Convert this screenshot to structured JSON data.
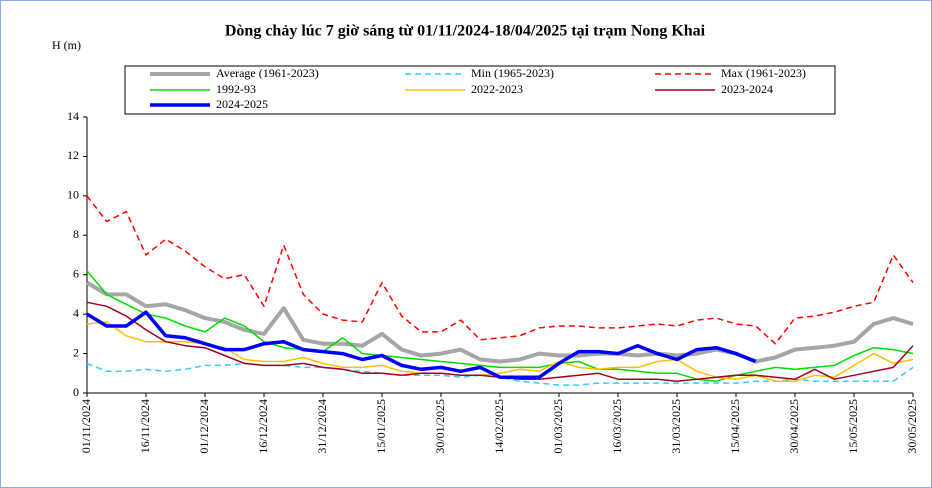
{
  "chart_data": {
    "type": "line",
    "title": "Dòng chảy lúc 7 giờ sáng từ 01/11/2024-18/04/2025 tại trạm Nong Khai",
    "y_label": "H (m)",
    "categories": [
      "01/11/2024",
      null,
      null,
      "16/11/2024",
      null,
      null,
      "01/12/2024",
      null,
      null,
      "16/12/2024",
      null,
      null,
      "31/12/2024",
      null,
      null,
      "15/01/2025",
      null,
      null,
      "30/01/2025",
      null,
      null,
      "14/02/2025",
      null,
      null,
      "01/03/2025",
      null,
      null,
      "16/03/2025",
      null,
      null,
      "31/03/2025",
      null,
      null,
      "15/04/2025",
      null,
      null,
      "30/04/2025",
      null,
      null,
      "15/05/2025",
      null,
      null,
      "30/05/2025"
    ],
    "ylim": [
      0,
      14
    ],
    "yticks": [
      0,
      2,
      4,
      6,
      8,
      10,
      12,
      14
    ],
    "series": [
      {
        "name": "Average (1961-2023)",
        "color": "#a6a6a6",
        "dash": false,
        "values": [
          5.6,
          5.0,
          5.0,
          4.4,
          4.5,
          4.2,
          3.8,
          3.6,
          3.2,
          3.0,
          4.3,
          2.7,
          2.5,
          2.5,
          2.4,
          3.0,
          2.2,
          1.9,
          2.0,
          2.2,
          1.7,
          1.6,
          1.7,
          2.0,
          1.9,
          1.9,
          2.0,
          2.0,
          1.9,
          2.0,
          1.9,
          2.0,
          2.2,
          2.0,
          1.6,
          1.8,
          2.2,
          2.3,
          2.4,
          2.6,
          3.5,
          3.8,
          3.5
        ]
      },
      {
        "name": "Min (1965-2023)",
        "color": "#33ccff",
        "dash": true,
        "values": [
          1.5,
          1.1,
          1.1,
          1.2,
          1.1,
          1.2,
          1.4,
          1.4,
          1.5,
          1.4,
          1.4,
          1.3,
          1.3,
          1.2,
          1.1,
          1.0,
          0.9,
          0.9,
          0.9,
          0.8,
          0.9,
          0.8,
          0.6,
          0.5,
          0.4,
          0.4,
          0.5,
          0.5,
          0.5,
          0.5,
          0.5,
          0.5,
          0.5,
          0.5,
          0.6,
          0.6,
          0.7,
          0.6,
          0.6,
          0.6,
          0.6,
          0.6,
          1.3
        ]
      },
      {
        "name": "Max (1961-2023)",
        "color": "#ff0000",
        "dash": true,
        "values": [
          10,
          8.7,
          9.2,
          7.0,
          7.8,
          7.2,
          6.4,
          5.8,
          6.0,
          4.4,
          7.5,
          5.0,
          4.0,
          3.7,
          3.6,
          5.6,
          3.9,
          3.1,
          3.1,
          3.7,
          2.7,
          2.8,
          2.9,
          3.3,
          3.4,
          3.4,
          3.3,
          3.3,
          3.4,
          3.5,
          3.4,
          3.7,
          3.8,
          3.5,
          3.4,
          2.5,
          3.8,
          3.9,
          4.1,
          4.4,
          4.6,
          7.0,
          5.6
        ]
      },
      {
        "name": "1992-93",
        "color": "#00dd00",
        "dash": false,
        "values": [
          6.2,
          5.0,
          4.5,
          4.0,
          3.8,
          3.4,
          3.1,
          3.8,
          3.4,
          2.6,
          2.3,
          2.2,
          2.1,
          2.8,
          2.0,
          1.9,
          1.8,
          1.7,
          1.6,
          1.5,
          1.4,
          1.3,
          1.3,
          1.3,
          1.5,
          1.6,
          1.2,
          1.2,
          1.1,
          1.0,
          1.0,
          0.7,
          0.6,
          0.9,
          1.1,
          1.3,
          1.2,
          1.3,
          1.4,
          1.9,
          2.3,
          2.2,
          2.0
        ]
      },
      {
        "name": "2022-2023",
        "color": "#ffc000",
        "dash": false,
        "values": [
          3.5,
          3.6,
          2.9,
          2.6,
          2.6,
          2.6,
          2.5,
          2.3,
          1.7,
          1.6,
          1.6,
          1.8,
          1.5,
          1.3,
          1.3,
          1.4,
          1.1,
          1.0,
          1.0,
          0.9,
          0.9,
          1.0,
          1.2,
          1.1,
          1.6,
          1.3,
          1.2,
          1.3,
          1.3,
          1.6,
          1.7,
          1.1,
          0.8,
          0.7,
          0.9,
          0.6,
          0.6,
          0.9,
          0.8,
          1.4,
          2.0,
          1.5,
          1.7
        ]
      },
      {
        "name": "2023-2024",
        "color": "#a50021",
        "dash": false,
        "values": [
          4.6,
          4.4,
          3.9,
          3.2,
          2.6,
          2.4,
          2.3,
          1.9,
          1.5,
          1.4,
          1.4,
          1.5,
          1.3,
          1.2,
          1.0,
          1.0,
          0.9,
          1.0,
          1.0,
          0.9,
          0.9,
          0.8,
          0.7,
          0.7,
          0.8,
          0.9,
          1.0,
          0.7,
          0.7,
          0.7,
          0.6,
          0.7,
          0.8,
          0.9,
          0.9,
          0.8,
          0.7,
          1.2,
          0.7,
          0.9,
          1.1,
          1.3,
          2.4
        ]
      },
      {
        "name": "2024-2025",
        "color": "#0000ff",
        "dash": false,
        "values": [
          4.0,
          3.4,
          3.4,
          4.1,
          2.9,
          2.8,
          2.5,
          2.2,
          2.2,
          2.5,
          2.6,
          2.2,
          2.1,
          2.0,
          1.7,
          1.9,
          1.4,
          1.2,
          1.3,
          1.1,
          1.3,
          0.8,
          0.8,
          0.8,
          1.5,
          2.1,
          2.1,
          2.0,
          2.4,
          2.0,
          1.7,
          2.2,
          2.3,
          2.0,
          1.6,
          null,
          null,
          null,
          null,
          null,
          null,
          null,
          null
        ]
      }
    ]
  }
}
